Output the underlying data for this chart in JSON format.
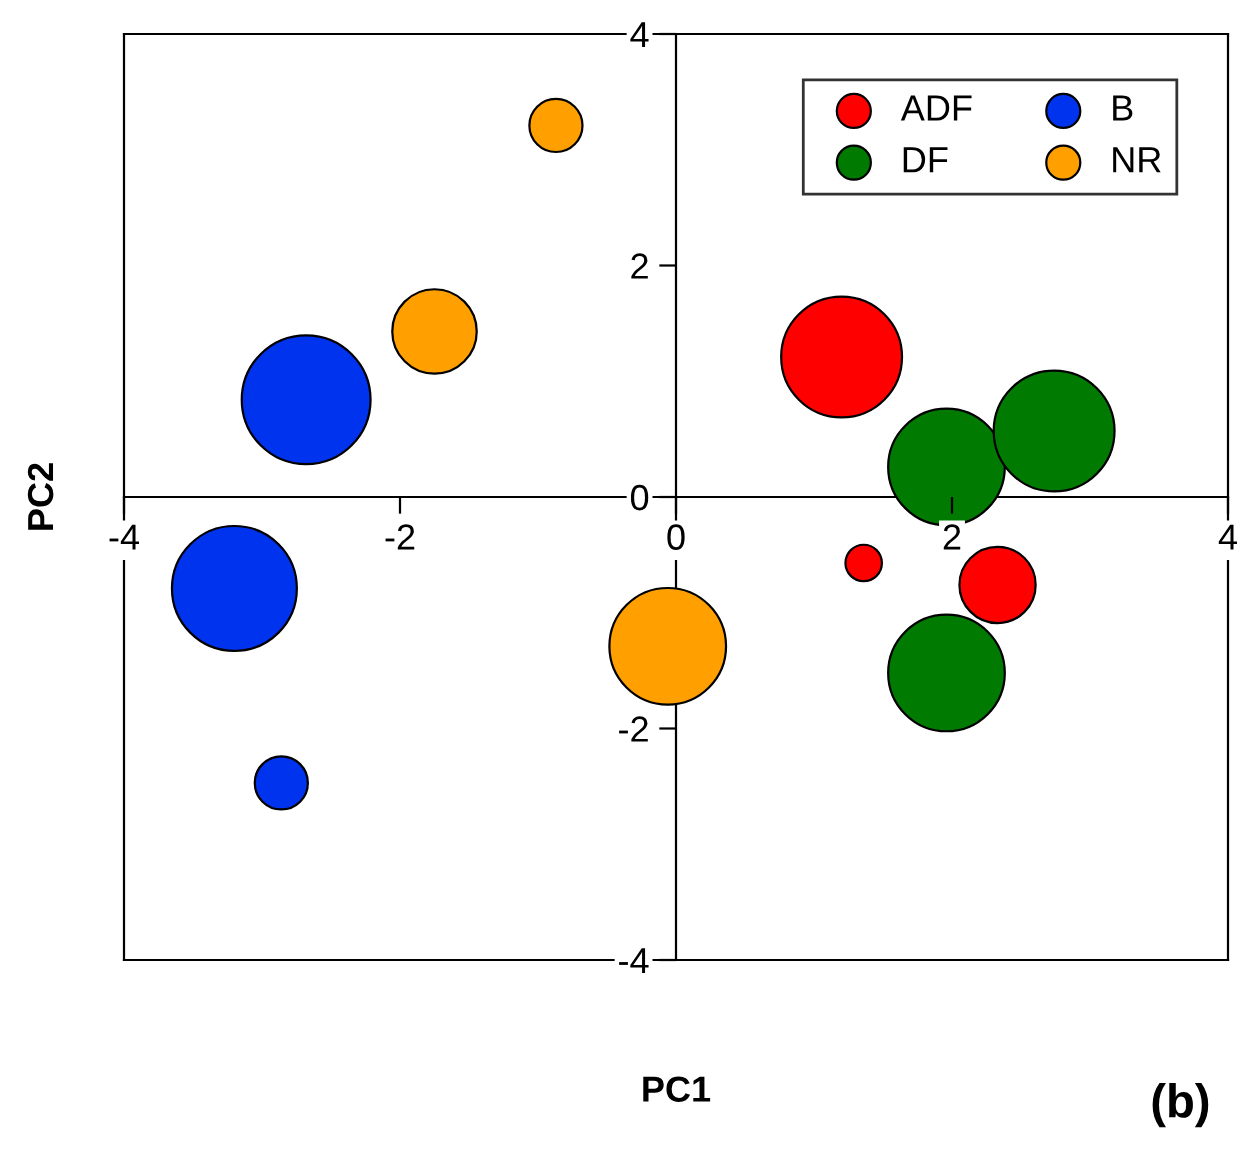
{
  "chart_data": {
    "type": "bubble",
    "xlabel": "PC1",
    "ylabel": "PC2",
    "annotations": [
      "(b)"
    ],
    "xlim": [
      -4,
      4
    ],
    "ylim": [
      -4,
      4
    ],
    "xticks": [
      -4,
      -2,
      0,
      2,
      4
    ],
    "yticks": [
      -4,
      -2,
      0,
      2,
      4
    ],
    "legend": "top right",
    "series": [
      {
        "name": "ADF",
        "color": "#ff0000",
        "x": [
          1.2,
          1.36,
          2.33
        ],
        "values": [
          1.21,
          -0.57,
          -0.76
        ],
        "sizes": [
          0.88,
          0.08,
          0.35
        ]
      },
      {
        "name": "DF",
        "color": "#007a00",
        "x": [
          1.96,
          2.74,
          1.96
        ],
        "values": [
          0.26,
          0.57,
          -1.52
        ],
        "sizes": [
          0.82,
          0.88,
          0.82
        ]
      },
      {
        "name": "B",
        "color": "#0033ee",
        "x": [
          -2.68,
          -3.2,
          -2.86
        ],
        "values": [
          0.84,
          -0.79,
          -2.47
        ],
        "sizes": [
          1.0,
          0.94,
          0.17
        ]
      },
      {
        "name": "NR",
        "color": "#ffa000",
        "x": [
          -0.87,
          -1.75,
          -0.06
        ],
        "values": [
          3.21,
          1.43,
          -1.29
        ],
        "sizes": [
          0.17,
          0.43,
          0.82
        ]
      }
    ]
  }
}
